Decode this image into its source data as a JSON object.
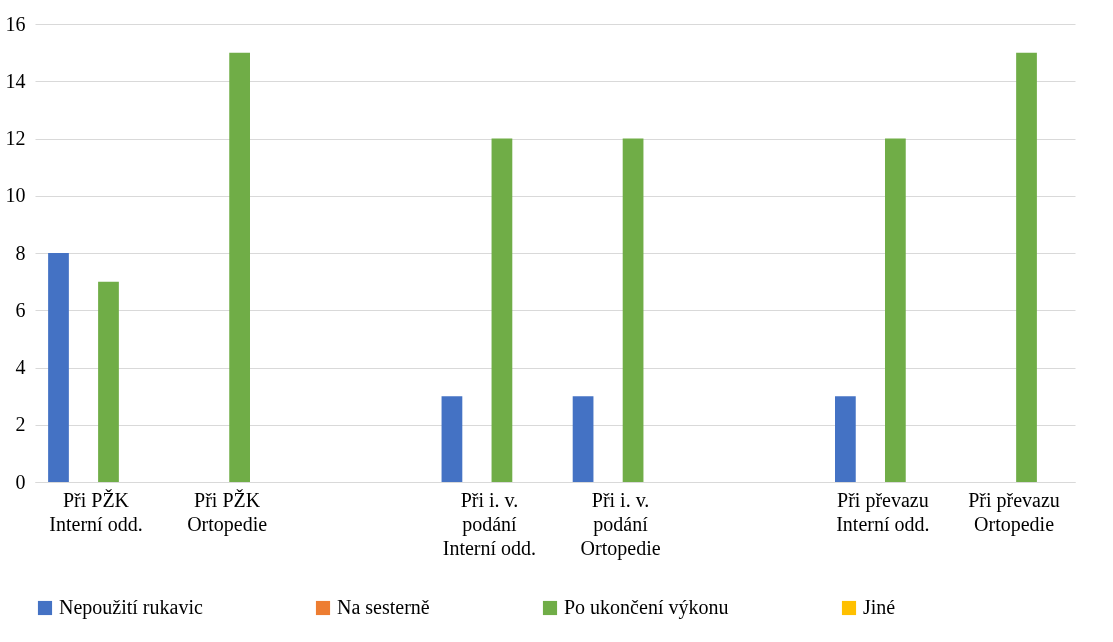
{
  "chart_data": {
    "type": "bar",
    "categories": [
      "Při PŽK\nInterní odd.",
      "Při PŽK\nOrtopedie",
      null,
      "Při i. v.\npodání\nInterní odd.",
      "Při i. v.\npodání\nOrtopedie",
      null,
      "Při převazu\nInterní odd.",
      "Při převazu\nOrtopedie"
    ],
    "series": [
      {
        "name": "Nepoužití rukavic",
        "color": "#4472c4",
        "values": [
          8,
          0,
          null,
          3,
          3,
          null,
          3,
          0
        ]
      },
      {
        "name": "Na sesterně",
        "color": "#ed7d31",
        "values": [
          0,
          0,
          null,
          0,
          0,
          null,
          0,
          0
        ]
      },
      {
        "name": "Po ukončení výkonu",
        "color": "#70ad47",
        "values": [
          7,
          15,
          null,
          12,
          12,
          null,
          12,
          15
        ]
      },
      {
        "name": "Jiné",
        "color": "#ffc000",
        "values": [
          0,
          0,
          null,
          0,
          0,
          null,
          0,
          0
        ]
      }
    ],
    "ylim": [
      0,
      16
    ],
    "yticks": [
      0,
      2,
      4,
      6,
      8,
      10,
      12,
      14,
      16
    ],
    "grid": "y",
    "legend": "bottom"
  }
}
